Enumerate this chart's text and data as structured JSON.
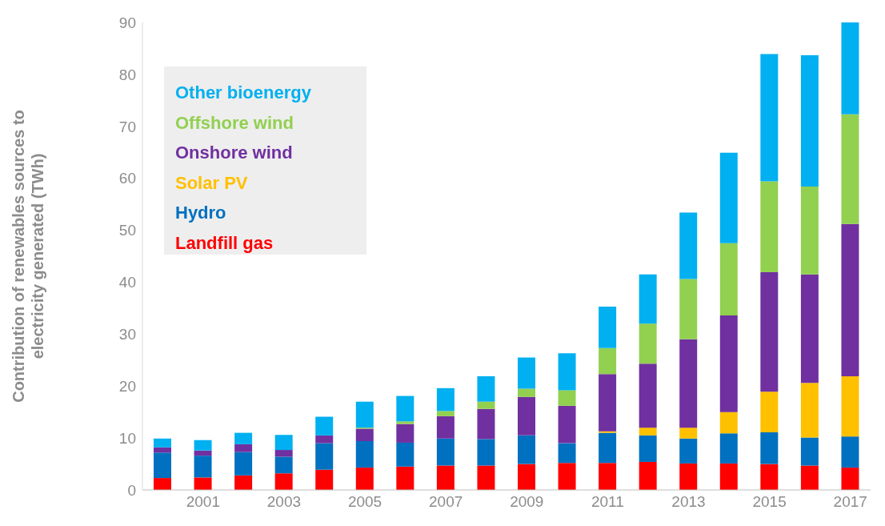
{
  "chart_data": {
    "type": "bar",
    "stacked": true,
    "ylabel": "Contribution of  renewables sources to electricity generated (TWh)",
    "categories": [
      null,
      "2001",
      null,
      "2003",
      null,
      "2005",
      null,
      "2007",
      null,
      "2009",
      null,
      "2011",
      null,
      "2013",
      null,
      "2015",
      null,
      "2017"
    ],
    "series": [
      {
        "name": "Landfill gas",
        "color": "#ff0000",
        "values": [
          2.3,
          2.4,
          2.8,
          3.2,
          3.9,
          4.3,
          4.5,
          4.7,
          4.7,
          5.0,
          5.2,
          5.2,
          5.4,
          5.1,
          5.1,
          5.0,
          4.7,
          4.3
        ]
      },
      {
        "name": "Hydro",
        "color": "#0070c0",
        "values": [
          4.9,
          4.2,
          4.5,
          3.2,
          5.1,
          5.1,
          4.6,
          5.2,
          5.1,
          5.5,
          3.8,
          5.8,
          5.1,
          4.8,
          5.8,
          6.1,
          5.4,
          6.0
        ]
      },
      {
        "name": "Solar PV",
        "color": "#ffc000",
        "values": [
          0,
          0,
          0,
          0,
          0,
          0,
          0,
          0,
          0,
          0,
          0,
          0.3,
          1.5,
          2.1,
          4.1,
          7.8,
          10.5,
          11.6
        ]
      },
      {
        "name": "Onshore wind",
        "color": "#7030a0",
        "values": [
          1.0,
          1.0,
          1.5,
          1.3,
          1.5,
          2.4,
          3.6,
          4.3,
          5.8,
          7.4,
          7.2,
          11.0,
          12.3,
          17.0,
          18.6,
          23.0,
          20.9,
          29.3
        ]
      },
      {
        "name": "Offshore wind",
        "color": "#92d050",
        "values": [
          0,
          0,
          0,
          0,
          0,
          0.2,
          0.5,
          1.0,
          1.4,
          1.6,
          3.0,
          5.0,
          7.7,
          11.6,
          13.9,
          17.5,
          16.9,
          21.1
        ]
      },
      {
        "name": "Other bioenergy",
        "color": "#00b0f0",
        "values": [
          1.7,
          2.0,
          2.2,
          2.9,
          3.6,
          5.0,
          4.9,
          4.4,
          4.9,
          6.0,
          7.1,
          8.0,
          9.5,
          12.8,
          17.4,
          24.5,
          25.3,
          17.7
        ]
      }
    ],
    "ylim": [
      0,
      90
    ],
    "yticks": [
      0,
      10,
      20,
      30,
      40,
      50,
      60,
      70,
      80,
      90
    ],
    "legend": "top left"
  }
}
